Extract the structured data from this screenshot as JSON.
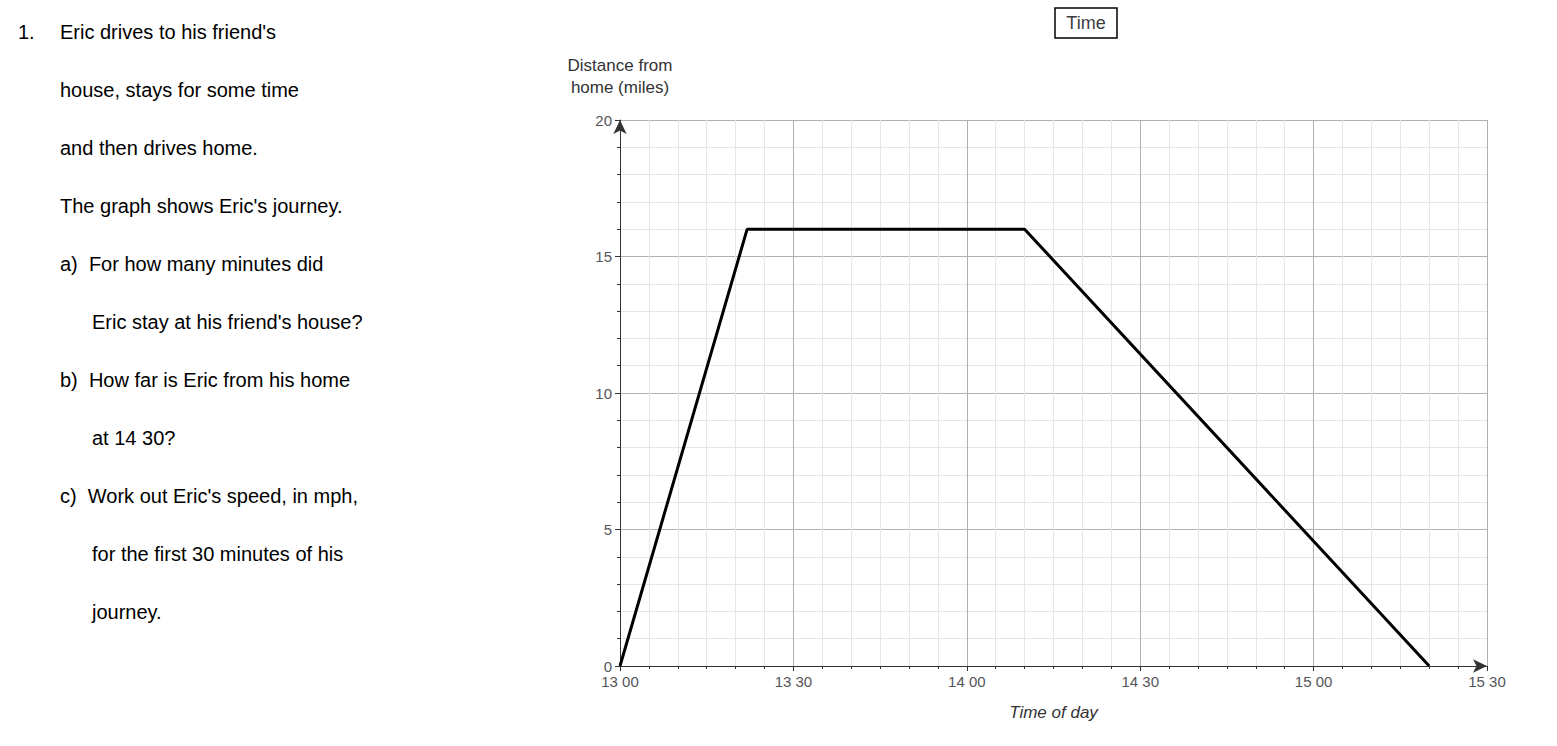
{
  "chart_data": {
    "type": "line",
    "title": "Time",
    "xlabel": "Time of day",
    "ylabel": "Distance from\nhome (miles)",
    "annotations": [
      "1.",
      "Eric drives to his friend's",
      "house, stays for some time",
      "and then drives home.",
      "The graph shows Eric's journey.",
      "a)  For how many minutes did",
      "Eric stay at his friend's house?",
      "b)  How far is Eric from his home",
      "at 14 30?",
      "c)  Work out Eric's speed, in mph,",
      "for the first 30 minutes of his",
      "journey."
    ],
    "x": [
      0,
      22,
      70,
      140
    ],
    "values": [
      0,
      16,
      16,
      0
    ],
    "color": "#000000",
    "xlim": [
      0,
      150
    ],
    "xticks": [
      {
        "value": 0,
        "label": "13 00"
      },
      {
        "value": 30,
        "label": "13 30"
      },
      {
        "value": 60,
        "label": "14 00"
      },
      {
        "value": 90,
        "label": "14 30"
      },
      {
        "value": 120,
        "label": "15 00"
      },
      {
        "value": 150,
        "label": "15 30"
      }
    ],
    "ylim": [
      0,
      20
    ],
    "yticks": [
      0,
      5,
      10,
      15,
      20
    ],
    "grid": true
  }
}
